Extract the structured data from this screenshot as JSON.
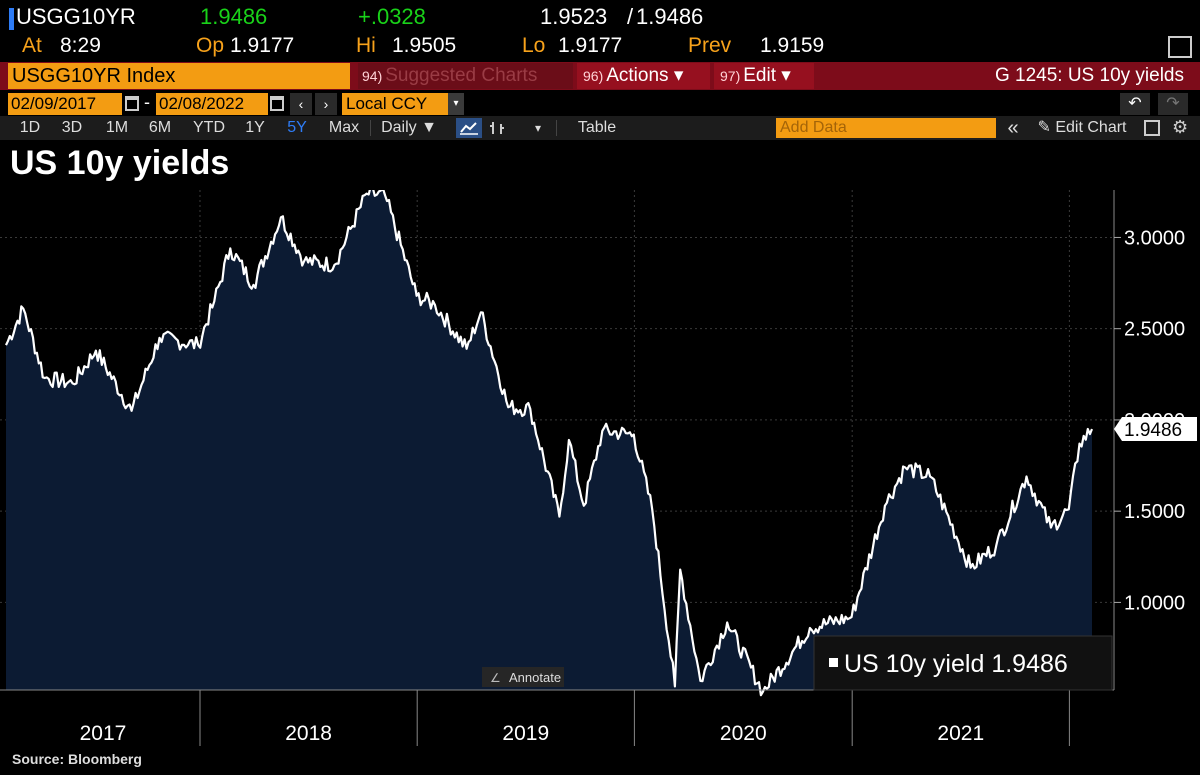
{
  "quote": {
    "ticker": "USGG10YR",
    "last": "1.9486",
    "change": "+.0328",
    "bid": "1.9523",
    "ask": "1.9486",
    "separator": "/"
  },
  "stats": {
    "at_label": "At",
    "at_value": "8:29",
    "open_label": "Op",
    "open_value": "1.9177",
    "high_label": "Hi",
    "high_value": "1.9505",
    "low_label": "Lo",
    "low_value": "1.9177",
    "prev_label": "Prev",
    "prev_value": "1.9159"
  },
  "menubar": {
    "index_label": "USGG10YR Index",
    "suggested_num": "94)",
    "suggested_label": "Suggested Charts",
    "actions_num": "96)",
    "actions_label": "Actions ▾",
    "edit_num": "97)",
    "edit_label": "Edit ▾",
    "page_title": "G 1245: US 10y yields"
  },
  "daterange": {
    "start": "02/09/2017",
    "dash": "-",
    "end": "02/08/2022",
    "prev_arrow": "‹",
    "next_arrow": "›",
    "currency": "Local CCY",
    "currency_arrow": "▾",
    "undo": "↶",
    "redo": "↷"
  },
  "toolbar": {
    "periods": [
      "1D",
      "3D",
      "1M",
      "6M",
      "YTD",
      "1Y",
      "5Y",
      "Max"
    ],
    "active_period": "5Y",
    "frequency": "Daily ▼",
    "chart_arrow": "▾",
    "table": "Table",
    "add_data_placeholder": "Add Data",
    "collapse": "«",
    "edit_chart": "✎ Edit Chart"
  },
  "chart_title": "US 10y yields",
  "annotate_label": "Annotate",
  "source": "Source: Bloomberg",
  "colors": {
    "area_fill": "#0c1b33",
    "line": "#ffffff",
    "accent": "#f39c12",
    "positive": "#19d219",
    "menubar": "#7d0c1a"
  },
  "chart_data": {
    "type": "area",
    "title": "US 10y yields",
    "xlabel": "",
    "ylabel": "",
    "x_ticks": [
      "2017",
      "2018",
      "2019",
      "2020",
      "2021"
    ],
    "y_ticks": [
      "1.0000",
      "1.5000",
      "2.0000",
      "2.5000",
      "3.0000"
    ],
    "ylim": [
      0.52,
      3.26
    ],
    "xlim": [
      "2017-02-09",
      "2022-02-08"
    ],
    "grid": "vertical dotted",
    "legend": "bottom-right",
    "last_value_label": "1.9486",
    "series": [
      {
        "name": "US 10y yield",
        "last": "1.9486",
        "points": [
          [
            "2017-02-09",
            2.41
          ],
          [
            "2017-03-10",
            2.61
          ],
          [
            "2017-04-15",
            2.23
          ],
          [
            "2017-06-01",
            2.2
          ],
          [
            "2017-07-10",
            2.38
          ],
          [
            "2017-09-08",
            2.05
          ],
          [
            "2017-10-25",
            2.45
          ],
          [
            "2017-12-29",
            2.41
          ],
          [
            "2018-01-25",
            2.65
          ],
          [
            "2018-02-21",
            2.94
          ],
          [
            "2018-04-01",
            2.74
          ],
          [
            "2018-05-17",
            3.11
          ],
          [
            "2018-06-25",
            2.87
          ],
          [
            "2018-08-15",
            2.85
          ],
          [
            "2018-10-08",
            3.24
          ],
          [
            "2018-11-08",
            3.23
          ],
          [
            "2018-12-31",
            2.68
          ],
          [
            "2019-01-31",
            2.63
          ],
          [
            "2019-03-25",
            2.39
          ],
          [
            "2019-04-18",
            2.59
          ],
          [
            "2019-06-03",
            2.07
          ],
          [
            "2019-07-10",
            2.06
          ],
          [
            "2019-08-28",
            1.47
          ],
          [
            "2019-09-13",
            1.89
          ],
          [
            "2019-10-08",
            1.53
          ],
          [
            "2019-11-08",
            1.94
          ],
          [
            "2019-12-31",
            1.92
          ],
          [
            "2020-01-31",
            1.51
          ],
          [
            "2020-03-09",
            0.54
          ],
          [
            "2020-03-18",
            1.18
          ],
          [
            "2020-04-21",
            0.57
          ],
          [
            "2020-06-05",
            0.89
          ],
          [
            "2020-08-04",
            0.51
          ],
          [
            "2020-10-22",
            0.86
          ],
          [
            "2020-12-31",
            0.92
          ],
          [
            "2021-02-25",
            1.53
          ],
          [
            "2021-03-31",
            1.74
          ],
          [
            "2021-05-12",
            1.69
          ],
          [
            "2021-07-19",
            1.19
          ],
          [
            "2021-08-31",
            1.31
          ],
          [
            "2021-10-21",
            1.69
          ],
          [
            "2021-12-01",
            1.41
          ],
          [
            "2021-12-31",
            1.51
          ],
          [
            "2022-01-18",
            1.87
          ],
          [
            "2022-02-08",
            1.95
          ]
        ]
      }
    ]
  }
}
